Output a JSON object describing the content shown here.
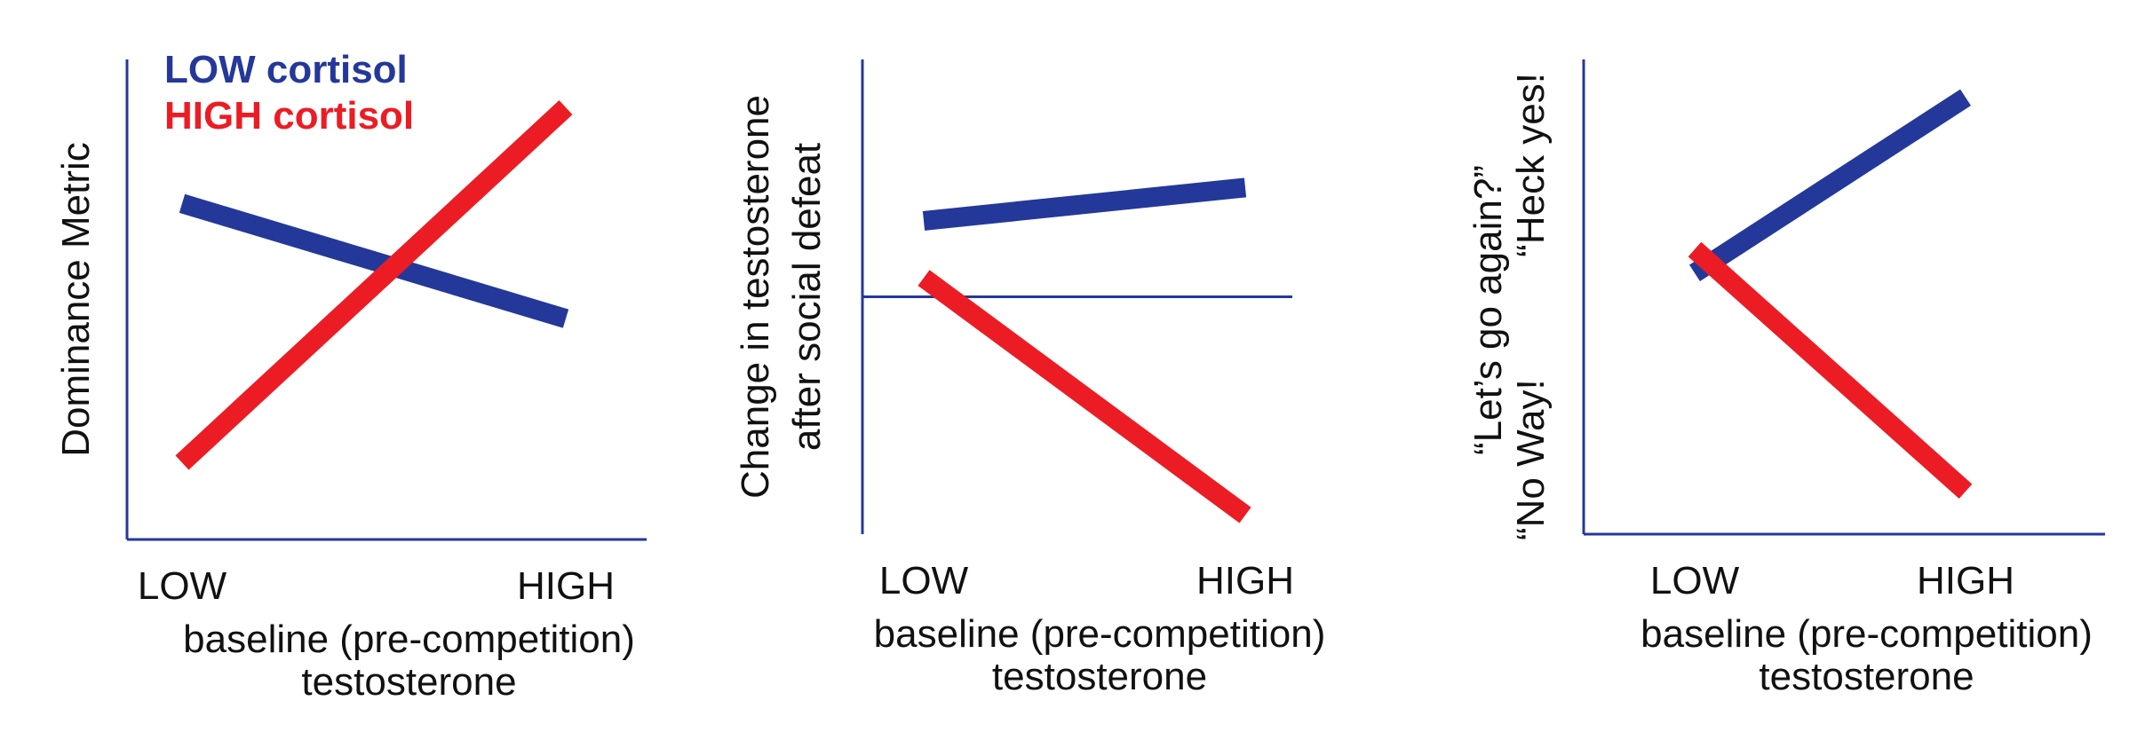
{
  "colors": {
    "axis": "#24389a",
    "low_cortisol": "#24389a",
    "high_cortisol": "#ec1c24",
    "text": "#111111"
  },
  "legend": {
    "low": "LOW cortisol",
    "high": "HIGH cortisol"
  },
  "chart_data": [
    {
      "type": "line",
      "xlabel": [
        "baseline (pre-competition)",
        "testosterone"
      ],
      "ylabel": [
        "Dominance Metric"
      ],
      "categories": [
        "LOW",
        "HIGH"
      ],
      "ylim": [
        0,
        10
      ],
      "series": [
        {
          "name": "LOW cortisol",
          "color": "#24389a",
          "values": [
            7.0,
            4.6
          ]
        },
        {
          "name": "HIGH cortisol",
          "color": "#ec1c24",
          "values": [
            1.6,
            9.0
          ]
        }
      ]
    },
    {
      "type": "line",
      "xlabel": [
        "baseline (pre-competition)",
        "testosterone"
      ],
      "ylabel": [
        "Change in testosterone",
        "after social defeat"
      ],
      "categories": [
        "LOW",
        "HIGH"
      ],
      "ylim": [
        -5,
        5
      ],
      "zero_line": 0,
      "series": [
        {
          "name": "LOW cortisol",
          "color": "#24389a",
          "values": [
            1.6,
            2.3
          ]
        },
        {
          "name": "HIGH cortisol",
          "color": "#ec1c24",
          "values": [
            0.4,
            -4.6
          ]
        }
      ]
    },
    {
      "type": "line",
      "xlabel": [
        "baseline (pre-competition)",
        "testosterone"
      ],
      "ylabel": [
        "“Let’s go again?”"
      ],
      "y_end_labels": {
        "low": "“No Way!",
        "high": "“Heck yes!"
      },
      "categories": [
        "LOW",
        "HIGH"
      ],
      "ylim": [
        0,
        10
      ],
      "series": [
        {
          "name": "LOW cortisol",
          "color": "#24389a",
          "values": [
            5.5,
            9.2
          ]
        },
        {
          "name": "HIGH cortisol",
          "color": "#ec1c24",
          "values": [
            6.0,
            0.9
          ]
        }
      ]
    }
  ]
}
